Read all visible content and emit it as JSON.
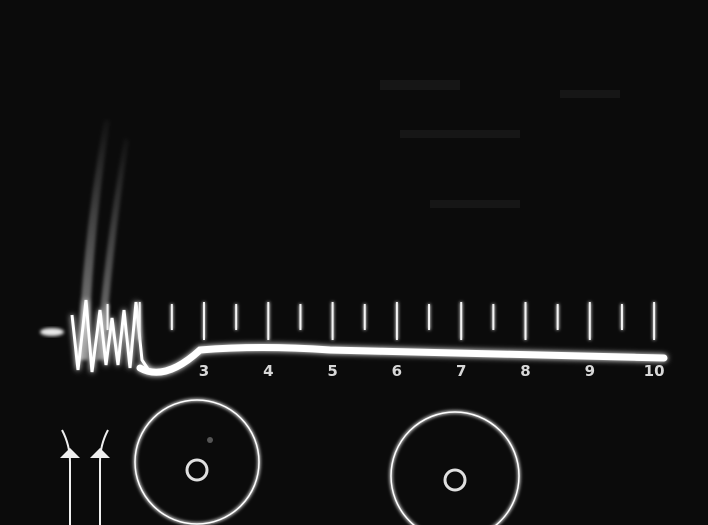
{
  "photo": {
    "scale_labels": [
      "3",
      "4",
      "5",
      "6",
      "7",
      "8",
      "9",
      "10"
    ],
    "scale_label_positions": [
      3,
      4,
      5,
      6,
      7,
      8,
      9,
      10
    ],
    "colors": {
      "background": "#0a0a0a",
      "trace": "#ffffff",
      "ticks": "#e6e6e6"
    }
  }
}
